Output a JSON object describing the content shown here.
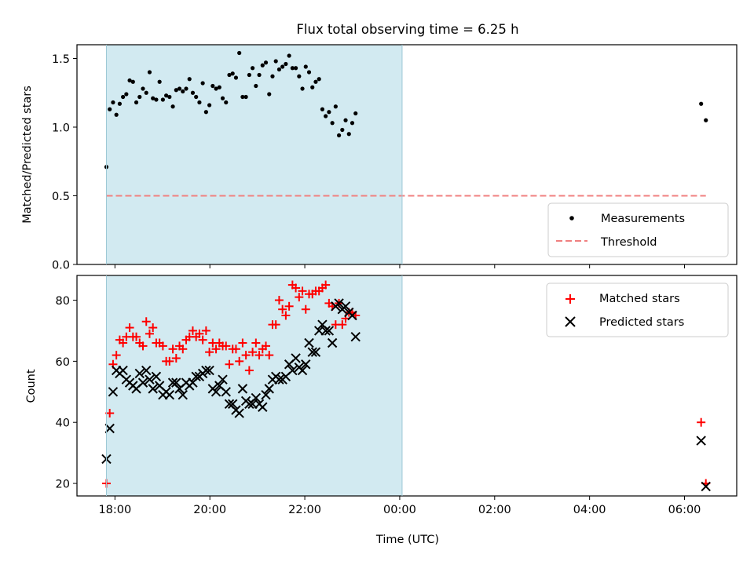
{
  "colors": {
    "shade": "#add8e6",
    "measure": "#000000",
    "threshold": "#f08080",
    "matched": "#ff0000",
    "predicted": "#000000"
  },
  "chart_data": [
    {
      "type": "scatter",
      "title": "Flux total observing time = 6.25 h",
      "xlabel": "",
      "ylabel": "Matched/Predicted stars",
      "ylim": [
        0,
        1.6
      ],
      "yticks": [
        "0.0",
        "0.5",
        "1.0",
        "1.5"
      ],
      "ytick_values": [
        0,
        0.5,
        1.0,
        1.5
      ],
      "xlim_hours": [
        17.2,
        31.1
      ],
      "xticks_hours": [
        18,
        20,
        22,
        24,
        26,
        28,
        30
      ],
      "xtick_labels": [],
      "shaded_interval_hours": [
        17.82,
        24.05
      ],
      "legend": {
        "placement": "lower right",
        "entries": [
          "Measurements",
          "Threshold"
        ]
      },
      "threshold": {
        "name": "Threshold",
        "y": 0.5,
        "x_hours": [
          17.82,
          30.45
        ]
      },
      "series": [
        {
          "name": "Measurements",
          "points": [
            [
              17.82,
              0.71
            ],
            [
              17.89,
              1.13
            ],
            [
              17.96,
              1.18
            ],
            [
              18.03,
              1.09
            ],
            [
              18.1,
              1.17
            ],
            [
              18.17,
              1.22
            ],
            [
              18.24,
              1.24
            ],
            [
              18.31,
              1.34
            ],
            [
              18.38,
              1.33
            ],
            [
              18.45,
              1.18
            ],
            [
              18.52,
              1.22
            ],
            [
              18.59,
              1.28
            ],
            [
              18.66,
              1.25
            ],
            [
              18.73,
              1.4
            ],
            [
              18.8,
              1.21
            ],
            [
              18.87,
              1.2
            ],
            [
              18.94,
              1.33
            ],
            [
              19.01,
              1.2
            ],
            [
              19.08,
              1.23
            ],
            [
              19.15,
              1.22
            ],
            [
              19.22,
              1.15
            ],
            [
              19.29,
              1.27
            ],
            [
              19.36,
              1.28
            ],
            [
              19.43,
              1.26
            ],
            [
              19.5,
              1.28
            ],
            [
              19.57,
              1.35
            ],
            [
              19.64,
              1.25
            ],
            [
              19.71,
              1.22
            ],
            [
              19.78,
              1.18
            ],
            [
              19.85,
              1.32
            ],
            [
              19.92,
              1.11
            ],
            [
              19.99,
              1.16
            ],
            [
              20.06,
              1.3
            ],
            [
              20.13,
              1.28
            ],
            [
              20.2,
              1.29
            ],
            [
              20.27,
              1.21
            ],
            [
              20.34,
              1.18
            ],
            [
              20.41,
              1.38
            ],
            [
              20.48,
              1.39
            ],
            [
              20.55,
              1.36
            ],
            [
              20.62,
              1.54
            ],
            [
              20.69,
              1.22
            ],
            [
              20.76,
              1.22
            ],
            [
              20.83,
              1.38
            ],
            [
              20.9,
              1.43
            ],
            [
              20.97,
              1.3
            ],
            [
              21.04,
              1.38
            ],
            [
              21.11,
              1.45
            ],
            [
              21.18,
              1.47
            ],
            [
              21.25,
              1.24
            ],
            [
              21.32,
              1.37
            ],
            [
              21.39,
              1.48
            ],
            [
              21.46,
              1.42
            ],
            [
              21.53,
              1.44
            ],
            [
              21.6,
              1.46
            ],
            [
              21.67,
              1.52
            ],
            [
              21.74,
              1.43
            ],
            [
              21.81,
              1.43
            ],
            [
              21.88,
              1.37
            ],
            [
              21.95,
              1.28
            ],
            [
              22.02,
              1.44
            ],
            [
              22.09,
              1.4
            ],
            [
              22.16,
              1.29
            ],
            [
              22.23,
              1.33
            ],
            [
              22.3,
              1.35
            ],
            [
              22.37,
              1.13
            ],
            [
              22.44,
              1.08
            ],
            [
              22.51,
              1.11
            ],
            [
              22.58,
              1.03
            ],
            [
              22.65,
              1.15
            ],
            [
              22.72,
              0.94
            ],
            [
              22.79,
              0.98
            ],
            [
              22.86,
              1.05
            ],
            [
              22.93,
              0.95
            ],
            [
              23.0,
              1.03
            ],
            [
              23.07,
              1.1
            ],
            [
              30.35,
              1.17
            ],
            [
              30.45,
              1.05
            ]
          ]
        }
      ]
    },
    {
      "type": "scatter",
      "title": "",
      "xlabel": "Time (UTC)",
      "ylabel": "Count",
      "ylim": [
        15.9,
        88.1
      ],
      "yticks": [
        "20",
        "40",
        "60",
        "80"
      ],
      "ytick_values": [
        20,
        40,
        60,
        80
      ],
      "xlim_hours": [
        17.2,
        31.1
      ],
      "xticks_hours": [
        18,
        20,
        22,
        24,
        26,
        28,
        30
      ],
      "xtick_labels": [
        "18:00",
        "20:00",
        "22:00",
        "00:00",
        "02:00",
        "04:00",
        "06:00"
      ],
      "shaded_interval_hours": [
        17.82,
        24.05
      ],
      "legend": {
        "placement": "upper right",
        "entries": [
          "Matched stars",
          "Predicted stars"
        ]
      },
      "series": [
        {
          "name": "Matched stars",
          "points": [
            [
              17.82,
              20
            ],
            [
              17.89,
              43
            ],
            [
              17.96,
              59
            ],
            [
              18.03,
              62
            ],
            [
              18.1,
              67
            ],
            [
              18.17,
              66
            ],
            [
              18.24,
              68
            ],
            [
              18.31,
              71
            ],
            [
              18.38,
              68
            ],
            [
              18.45,
              68
            ],
            [
              18.52,
              66
            ],
            [
              18.59,
              65
            ],
            [
              18.66,
              73
            ],
            [
              18.73,
              69
            ],
            [
              18.8,
              71
            ],
            [
              18.87,
              66
            ],
            [
              18.94,
              66
            ],
            [
              19.01,
              65
            ],
            [
              19.08,
              60
            ],
            [
              19.15,
              60
            ],
            [
              19.22,
              64
            ],
            [
              19.29,
              61
            ],
            [
              19.36,
              65
            ],
            [
              19.43,
              64
            ],
            [
              19.5,
              67
            ],
            [
              19.57,
              68
            ],
            [
              19.64,
              70
            ],
            [
              19.71,
              68
            ],
            [
              19.78,
              69
            ],
            [
              19.85,
              67
            ],
            [
              19.92,
              70
            ],
            [
              19.99,
              63
            ],
            [
              20.06,
              66
            ],
            [
              20.13,
              64
            ],
            [
              20.2,
              66
            ],
            [
              20.27,
              65
            ],
            [
              20.34,
              65
            ],
            [
              20.41,
              59
            ],
            [
              20.48,
              64
            ],
            [
              20.55,
              64
            ],
            [
              20.62,
              60
            ],
            [
              20.69,
              66
            ],
            [
              20.76,
              62
            ],
            [
              20.83,
              57
            ],
            [
              20.9,
              63
            ],
            [
              20.97,
              66
            ],
            [
              21.04,
              62
            ],
            [
              21.11,
              64
            ],
            [
              21.18,
              65
            ],
            [
              21.25,
              62
            ],
            [
              21.32,
              72
            ],
            [
              21.39,
              72
            ],
            [
              21.46,
              80
            ],
            [
              21.53,
              77
            ],
            [
              21.6,
              75
            ],
            [
              21.67,
              78
            ],
            [
              21.74,
              85
            ],
            [
              21.81,
              84
            ],
            [
              21.88,
              81
            ],
            [
              21.95,
              83
            ],
            [
              22.02,
              77
            ],
            [
              22.09,
              82
            ],
            [
              22.16,
              82
            ],
            [
              22.23,
              83
            ],
            [
              22.3,
              83
            ],
            [
              22.37,
              84
            ],
            [
              22.44,
              85
            ],
            [
              22.51,
              79
            ],
            [
              22.58,
              78
            ],
            [
              22.65,
              72
            ],
            [
              22.72,
              79
            ],
            [
              22.79,
              72
            ],
            [
              22.86,
              74
            ],
            [
              22.93,
              76
            ],
            [
              23.0,
              76
            ],
            [
              23.07,
              75
            ],
            [
              30.35,
              40
            ],
            [
              30.45,
              20
            ]
          ]
        },
        {
          "name": "Predicted stars",
          "points": [
            [
              17.82,
              28
            ],
            [
              17.89,
              38
            ],
            [
              17.96,
              50
            ],
            [
              18.03,
              57
            ],
            [
              18.1,
              56
            ],
            [
              18.17,
              57
            ],
            [
              18.24,
              54
            ],
            [
              18.31,
              53
            ],
            [
              18.38,
              52
            ],
            [
              18.45,
              51
            ],
            [
              18.52,
              56
            ],
            [
              18.59,
              53
            ],
            [
              18.66,
              57
            ],
            [
              18.73,
              54
            ],
            [
              18.8,
              51
            ],
            [
              18.87,
              55
            ],
            [
              18.94,
              52
            ],
            [
              19.01,
              49
            ],
            [
              19.08,
              50
            ],
            [
              19.15,
              49
            ],
            [
              19.22,
              53
            ],
            [
              19.29,
              53
            ],
            [
              19.36,
              51
            ],
            [
              19.43,
              49
            ],
            [
              19.5,
              53
            ],
            [
              19.57,
              52
            ],
            [
              19.64,
              53
            ],
            [
              19.71,
              55
            ],
            [
              19.78,
              55
            ],
            [
              19.85,
              56
            ],
            [
              19.92,
              57
            ],
            [
              19.99,
              57
            ],
            [
              20.06,
              51
            ],
            [
              20.13,
              50
            ],
            [
              20.2,
              52
            ],
            [
              20.27,
              54
            ],
            [
              20.34,
              50
            ],
            [
              20.41,
              46
            ],
            [
              20.48,
              46
            ],
            [
              20.55,
              44
            ],
            [
              20.62,
              43
            ],
            [
              20.69,
              51
            ],
            [
              20.76,
              47
            ],
            [
              20.83,
              46
            ],
            [
              20.9,
              46
            ],
            [
              20.97,
              48
            ],
            [
              21.04,
              46
            ],
            [
              21.11,
              45
            ],
            [
              21.18,
              49
            ],
            [
              21.25,
              51
            ],
            [
              21.32,
              54
            ],
            [
              21.39,
              55
            ],
            [
              21.46,
              54
            ],
            [
              21.53,
              54
            ],
            [
              21.6,
              55
            ],
            [
              21.67,
              59
            ],
            [
              21.74,
              57
            ],
            [
              21.81,
              61
            ],
            [
              21.88,
              58
            ],
            [
              21.95,
              57
            ],
            [
              22.02,
              59
            ],
            [
              22.09,
              66
            ],
            [
              22.16,
              63
            ],
            [
              22.23,
              63
            ],
            [
              22.3,
              70
            ],
            [
              22.37,
              72
            ],
            [
              22.44,
              70
            ],
            [
              22.51,
              70
            ],
            [
              22.58,
              66
            ],
            [
              22.65,
              78
            ],
            [
              22.72,
              79
            ],
            [
              22.79,
              77
            ],
            [
              22.86,
              78
            ],
            [
              22.93,
              76
            ],
            [
              23.0,
              75
            ],
            [
              23.07,
              68
            ],
            [
              30.35,
              34
            ],
            [
              30.45,
              19
            ]
          ]
        }
      ]
    }
  ]
}
